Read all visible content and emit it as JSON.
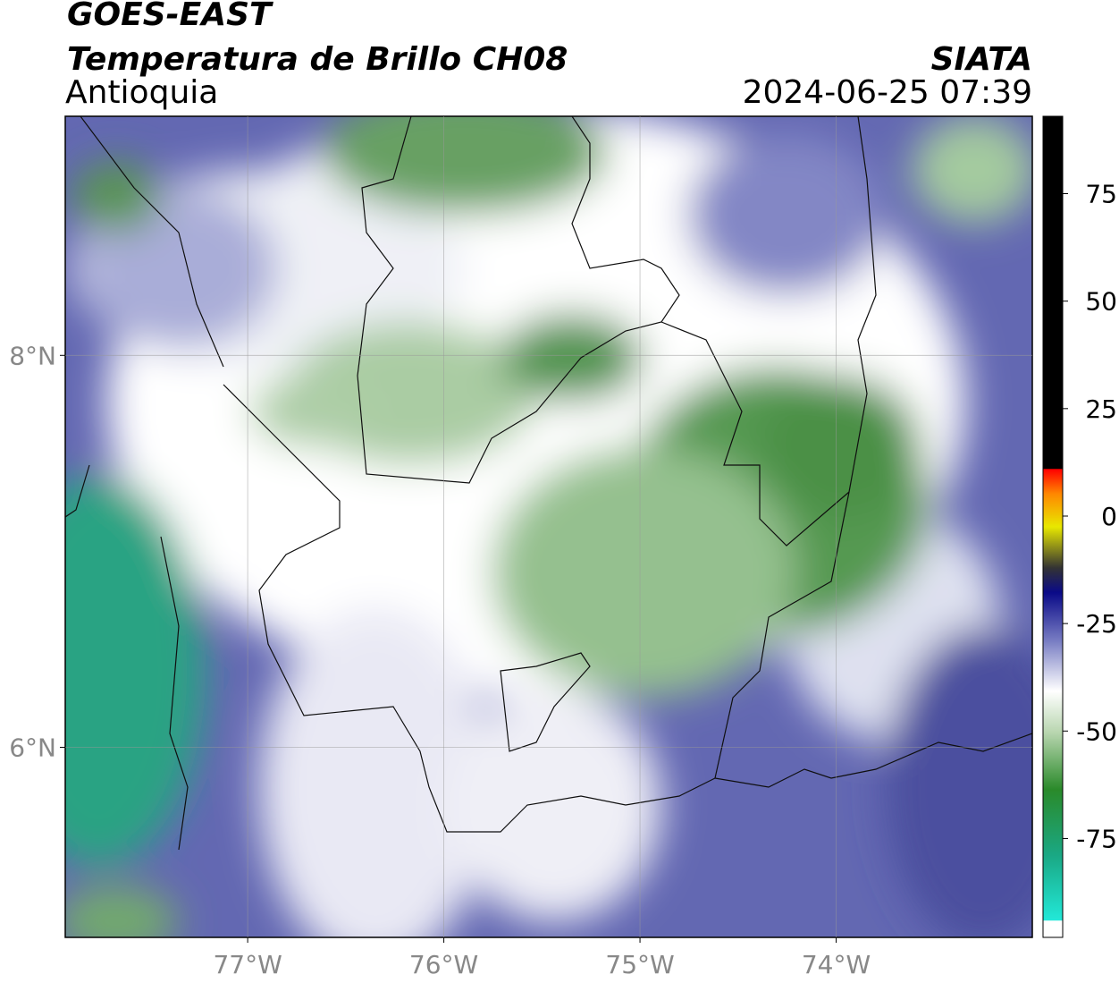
{
  "header": {
    "title": "GOES-EAST",
    "subtitle": "Temperatura de Brillo CH08",
    "region": "Antioquia",
    "agency": "SIATA",
    "datetime": "2024-06-25 07:39"
  },
  "map": {
    "xlim": [
      -77.93,
      -73.0
    ],
    "ylim": [
      5.03,
      9.22
    ],
    "xticks": [
      {
        "value": -77,
        "label": "77°W"
      },
      {
        "value": -76,
        "label": "76°W"
      },
      {
        "value": -75,
        "label": "75°W"
      },
      {
        "value": -74,
        "label": "74°W"
      }
    ],
    "yticks": [
      {
        "value": 8,
        "label": "8°N"
      },
      {
        "value": 6,
        "label": "6°N"
      }
    ],
    "grid": true
  },
  "colorbar": {
    "lim": [
      -98,
      93
    ],
    "ticks": [
      75,
      50,
      25,
      0,
      -25,
      -50,
      -75
    ]
  }
}
